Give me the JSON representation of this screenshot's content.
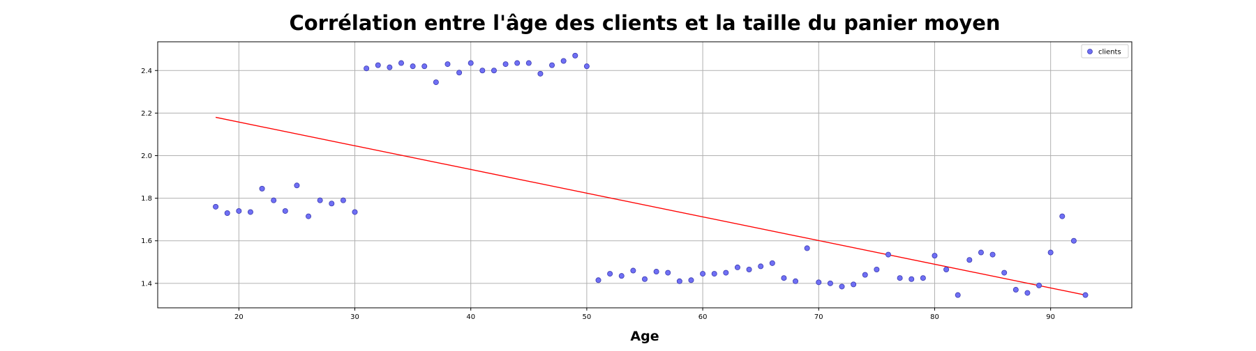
{
  "chart_data": {
    "type": "scatter",
    "title": "Corrélation entre l'âge des clients et la taille du panier moyen",
    "xlabel": "Age",
    "ylabel": "",
    "xlim": [
      13,
      97
    ],
    "ylim": [
      1.285,
      2.535
    ],
    "xticks": [
      20,
      30,
      40,
      50,
      60,
      70,
      80,
      90
    ],
    "yticks": [
      1.4,
      1.6,
      1.8,
      2.0,
      2.2,
      2.4
    ],
    "grid": true,
    "legend": {
      "position": "top-right",
      "entries": [
        "clients"
      ]
    },
    "colors": {
      "points": "#6f6ff4",
      "point_edge": "#3a3ab0",
      "trend": "#ff0000",
      "grid": "#b0b0b0"
    },
    "series": [
      {
        "name": "clients",
        "x": [
          18,
          19,
          20,
          21,
          22,
          23,
          24,
          25,
          26,
          27,
          28,
          29,
          30,
          31,
          32,
          33,
          34,
          35,
          36,
          37,
          38,
          39,
          40,
          41,
          42,
          43,
          44,
          45,
          46,
          47,
          48,
          49,
          50,
          51,
          52,
          53,
          54,
          55,
          56,
          57,
          58,
          59,
          60,
          61,
          62,
          63,
          64,
          65,
          66,
          67,
          68,
          69,
          70,
          71,
          72,
          73,
          74,
          75,
          76,
          77,
          78,
          79,
          80,
          81,
          82,
          83,
          84,
          85,
          86,
          87,
          88,
          89,
          90,
          91,
          92,
          93
        ],
        "y": [
          1.76,
          1.73,
          1.74,
          1.735,
          1.845,
          1.79,
          1.74,
          1.86,
          1.715,
          1.79,
          1.775,
          1.79,
          1.735,
          2.41,
          2.425,
          2.415,
          2.435,
          2.42,
          2.42,
          2.345,
          2.43,
          2.39,
          2.435,
          2.4,
          2.4,
          2.43,
          2.435,
          2.435,
          2.385,
          2.425,
          2.445,
          2.47,
          2.42,
          1.415,
          1.445,
          1.435,
          1.46,
          1.42,
          1.455,
          1.45,
          1.41,
          1.415,
          1.445,
          1.445,
          1.45,
          1.475,
          1.465,
          1.48,
          1.495,
          1.425,
          1.41,
          1.565,
          1.405,
          1.4,
          1.385,
          1.395,
          1.44,
          1.465,
          1.535,
          1.425,
          1.42,
          1.425,
          1.53,
          1.465,
          1.345,
          1.51,
          1.545,
          1.535,
          1.45,
          1.37,
          1.355,
          1.39,
          1.545,
          1.715,
          1.6,
          1.345
        ]
      }
    ],
    "trendline": {
      "x": [
        18,
        93
      ],
      "y": [
        2.18,
        1.345
      ]
    }
  }
}
